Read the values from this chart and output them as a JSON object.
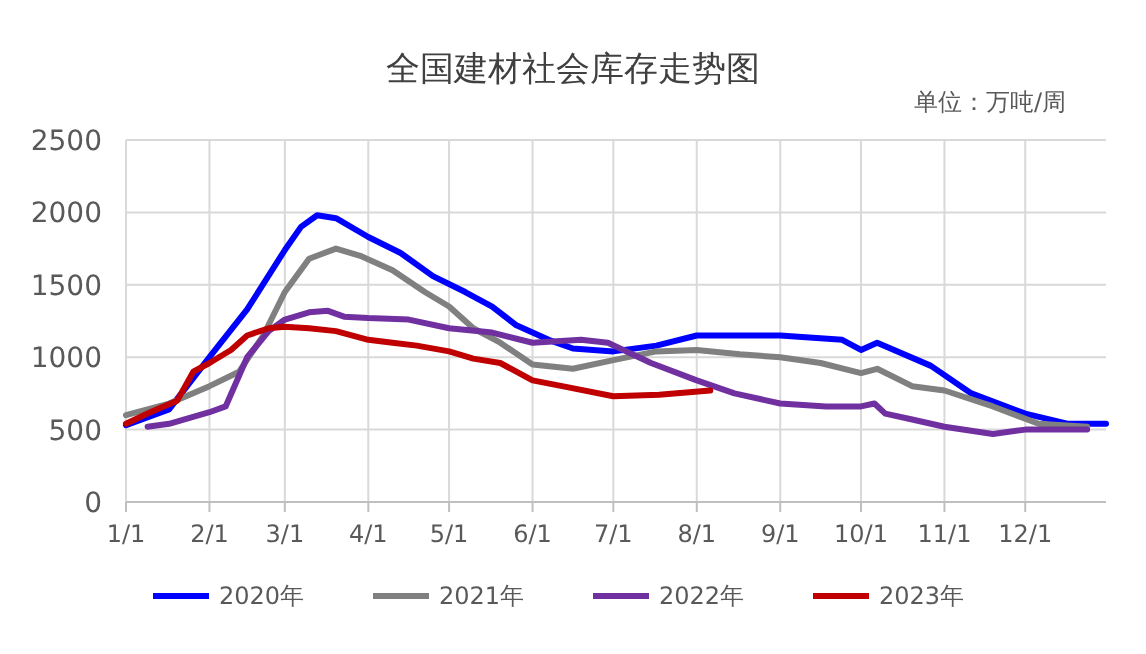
{
  "chart_data": {
    "type": "line",
    "title": "全国建材社会库存走势图",
    "annotations": [
      "单位：万吨/周"
    ],
    "xlim": [
      "--01-01",
      "--12-31"
    ],
    "xticks": [
      {
        "value": "--01-01",
        "label": "1/1"
      },
      {
        "value": "--02-01",
        "label": "2/1"
      },
      {
        "value": "--03-01",
        "label": "3/1"
      },
      {
        "value": "--04-01",
        "label": "4/1"
      },
      {
        "value": "--05-01",
        "label": "5/1"
      },
      {
        "value": "--06-01",
        "label": "6/1"
      },
      {
        "value": "--07-01",
        "label": "7/1"
      },
      {
        "value": "--08-01",
        "label": "8/1"
      },
      {
        "value": "--09-01",
        "label": "9/1"
      },
      {
        "value": "--10-01",
        "label": "10/1"
      },
      {
        "value": "--11-01",
        "label": "11/1"
      },
      {
        "value": "--12-01",
        "label": "12/1"
      }
    ],
    "ylim": [
      0,
      2500
    ],
    "yticks": [
      0,
      500,
      1000,
      1500,
      2000,
      2500
    ],
    "grid": true,
    "legend": "bottom",
    "marker": "none",
    "line_style": "solid",
    "series": [
      {
        "name": "2020年",
        "color": "#0000ff",
        "x": [
          "--01-01",
          "--01-17",
          "--02-01",
          "--02-15",
          "--03-01",
          "--03-07",
          "--03-13",
          "--03-20",
          "--04-01",
          "--04-13",
          "--04-25",
          "--05-07",
          "--05-17",
          "--05-26",
          "--06-07",
          "--06-16",
          "--07-01",
          "--07-17",
          "--08-01",
          "--09-01",
          "--09-24",
          "--10-01",
          "--10-07",
          "--10-27",
          "--11-11",
          "--12-01",
          "--12-17",
          "--12-31"
        ],
        "values": [
          530,
          640,
          1000,
          1330,
          1740,
          1900,
          1980,
          1960,
          1830,
          1720,
          1560,
          1450,
          1350,
          1220,
          1120,
          1060,
          1040,
          1080,
          1150,
          1150,
          1120,
          1050,
          1100,
          940,
          750,
          610,
          540,
          540
        ]
      },
      {
        "name": "2021年",
        "color": "#808080",
        "x": [
          "--01-01",
          "--01-17",
          "--02-01",
          "--02-12",
          "--02-21",
          "--03-01",
          "--03-10",
          "--03-20",
          "--03-29",
          "--04-10",
          "--04-22",
          "--05-01",
          "--05-10",
          "--05-20",
          "--06-01",
          "--06-16",
          "--07-01",
          "--07-17",
          "--08-01",
          "--08-17",
          "--09-01",
          "--09-16",
          "--10-01",
          "--10-07",
          "--10-20",
          "--11-01",
          "--11-19",
          "--12-06",
          "--12-24"
        ],
        "values": [
          600,
          680,
          800,
          900,
          1150,
          1450,
          1680,
          1750,
          1700,
          1600,
          1450,
          1350,
          1200,
          1100,
          950,
          920,
          980,
          1040,
          1050,
          1020,
          1000,
          960,
          890,
          920,
          800,
          770,
          660,
          540,
          520
        ]
      },
      {
        "name": "2022年",
        "color": "#7030a0",
        "x": [
          "--01-09",
          "--01-17",
          "--02-01",
          "--02-07",
          "--02-15",
          "--02-23",
          "--03-01",
          "--03-10",
          "--03-17",
          "--03-23",
          "--04-01",
          "--04-16",
          "--05-01",
          "--05-17",
          "--06-01",
          "--06-19",
          "--06-29",
          "--07-15",
          "--08-01",
          "--08-15",
          "--09-01",
          "--09-18",
          "--10-01",
          "--10-06",
          "--10-10",
          "--10-20",
          "--11-01",
          "--11-19",
          "--12-01",
          "--12-24"
        ],
        "values": [
          520,
          540,
          620,
          660,
          1000,
          1180,
          1260,
          1310,
          1320,
          1280,
          1270,
          1260,
          1200,
          1170,
          1100,
          1120,
          1100,
          960,
          840,
          750,
          680,
          660,
          660,
          680,
          610,
          570,
          520,
          470,
          500,
          500
        ]
      },
      {
        "name": "2023年",
        "color": "#c00000",
        "x": [
          "--01-01",
          "--01-10",
          "--01-20",
          "--01-26",
          "--02-01",
          "--02-09",
          "--02-15",
          "--02-23",
          "--03-01",
          "--03-10",
          "--03-20",
          "--04-01",
          "--04-10",
          "--04-19",
          "--05-01",
          "--05-10",
          "--05-20",
          "--06-01",
          "--06-12",
          "--07-01",
          "--07-18",
          "--08-06"
        ],
        "values": [
          540,
          620,
          700,
          900,
          960,
          1050,
          1150,
          1200,
          1210,
          1200,
          1180,
          1120,
          1100,
          1080,
          1040,
          990,
          960,
          840,
          800,
          730,
          740,
          770
        ]
      }
    ]
  }
}
